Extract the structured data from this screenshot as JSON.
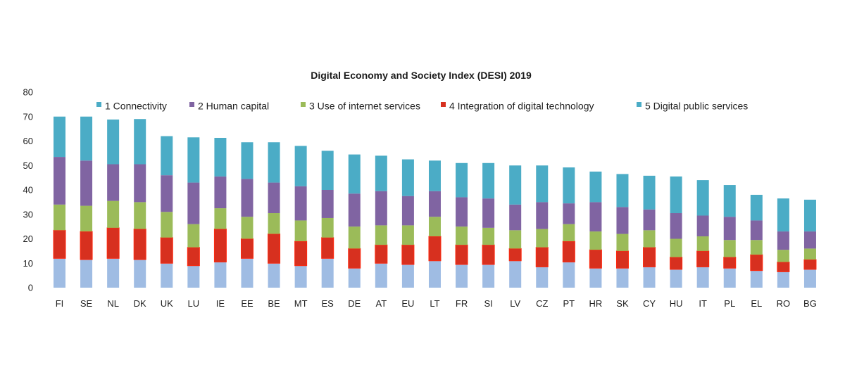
{
  "chart_data": {
    "type": "bar",
    "stacked": true,
    "title": "Digital Economy and Society Index (DESI) 2019",
    "xlabel": "",
    "ylabel": "",
    "ylim": [
      0,
      80
    ],
    "yticks": [
      0,
      10,
      20,
      30,
      40,
      50,
      60,
      70,
      80
    ],
    "grid": false,
    "legend_position": "top",
    "categories": [
      "FI",
      "SE",
      "NL",
      "DK",
      "UK",
      "LU",
      "IE",
      "EE",
      "BE",
      "MT",
      "ES",
      "DE",
      "AT",
      "EU",
      "LT",
      "FR",
      "SI",
      "LV",
      "CZ",
      "PT",
      "HR",
      "SK",
      "CY",
      "HU",
      "IT",
      "PL",
      "EL",
      "RO",
      "BG"
    ],
    "series": [
      {
        "name": "1 Connectivity",
        "color": "#9fbce3",
        "values": [
          12.0,
          11.5,
          12.0,
          11.5,
          10.0,
          9.0,
          10.5,
          12.0,
          10.0,
          9.0,
          12.0,
          8.0,
          10.0,
          9.5,
          11.0,
          9.5,
          9.5,
          11.0,
          8.5,
          10.5,
          8.0,
          8.0,
          8.5,
          7.5,
          8.5,
          8.0,
          7.0,
          6.5,
          7.5
        ]
      },
      {
        "name": "2 Human capital",
        "color": "#d7301f",
        "values": [
          11.5,
          11.5,
          12.5,
          12.5,
          10.5,
          7.5,
          13.5,
          8.0,
          12.0,
          10.0,
          8.5,
          8.0,
          7.5,
          8.0,
          10.0,
          8.0,
          8.0,
          5.0,
          8.0,
          8.5,
          7.5,
          7.0,
          8.0,
          5.0,
          6.5,
          4.5,
          6.5,
          4.0,
          4.0
        ]
      },
      {
        "name": "3 Use of internet services",
        "color": "#9bbb59",
        "values": [
          10.5,
          10.5,
          11.0,
          11.0,
          10.5,
          9.5,
          8.5,
          9.0,
          8.5,
          8.5,
          8.0,
          9.0,
          8.0,
          8.0,
          8.0,
          7.5,
          7.0,
          7.5,
          7.5,
          7.0,
          7.5,
          7.0,
          7.0,
          7.5,
          6.0,
          7.0,
          6.0,
          5.0,
          4.5
        ]
      },
      {
        "name": "4 Integration of digital technology",
        "color": "#8064a2",
        "values": [
          19.5,
          18.5,
          15.0,
          15.5,
          15.0,
          17.0,
          13.0,
          15.5,
          12.5,
          14.0,
          11.5,
          13.5,
          14.0,
          12.0,
          10.5,
          12.0,
          12.0,
          10.5,
          11.0,
          8.5,
          12.0,
          11.0,
          8.5,
          10.5,
          8.5,
          9.5,
          8.0,
          7.5,
          7.0
        ]
      },
      {
        "name": "5 Digital public services",
        "color": "#4bacc6",
        "values": [
          16.5,
          18.0,
          18.3,
          18.5,
          16.0,
          18.5,
          15.8,
          15.0,
          16.5,
          16.5,
          16.0,
          16.0,
          14.5,
          15.0,
          12.5,
          14.0,
          14.5,
          16.0,
          15.0,
          14.7,
          12.5,
          13.5,
          13.8,
          15.0,
          14.5,
          13.0,
          10.5,
          13.5,
          13.0
        ]
      }
    ]
  },
  "legend": [
    {
      "label": "1 Connectivity",
      "color": "#4bacc6"
    },
    {
      "label": "2 Human capital",
      "color": "#8064a2"
    },
    {
      "label": "3 Use of internet services",
      "color": "#9bbb59"
    },
    {
      "label": "4 Integration of digital technology",
      "color": "#d7301f"
    },
    {
      "label": "5 Digital public services",
      "color": "#4bacc6"
    }
  ]
}
